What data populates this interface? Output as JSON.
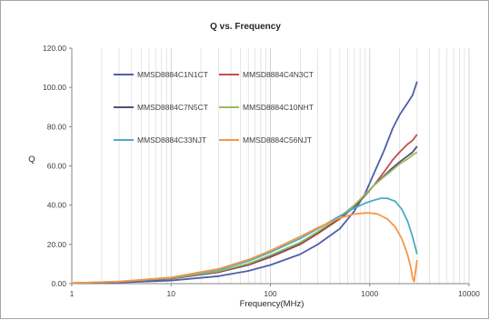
{
  "chart_data": {
    "type": "line",
    "title": "Q vs. Frequency",
    "xlabel": "Frequency(MHz)",
    "ylabel": "Q",
    "xscale": "log",
    "xlim": [
      1,
      10000
    ],
    "ylim": [
      0,
      120
    ],
    "x_ticks": [
      "1",
      "10",
      "100",
      "1000",
      "10000"
    ],
    "y_ticks": [
      "0.00",
      "20.00",
      "40.00",
      "60.00",
      "80.00",
      "100.00",
      "120.00"
    ],
    "grid": "vertical-minor-log",
    "legend_position": "upper-left",
    "series": [
      {
        "name": "MMSD8884C1N1CT",
        "color": "#4f5fa8",
        "points": [
          [
            1,
            0.2
          ],
          [
            3,
            0.6
          ],
          [
            10,
            1.6
          ],
          [
            30,
            3.8
          ],
          [
            60,
            6.5
          ],
          [
            100,
            9.5
          ],
          [
            200,
            15
          ],
          [
            300,
            20
          ],
          [
            500,
            28
          ],
          [
            700,
            37
          ],
          [
            900,
            46
          ],
          [
            1100,
            56
          ],
          [
            1400,
            68
          ],
          [
            1700,
            79
          ],
          [
            2000,
            86
          ],
          [
            2400,
            92
          ],
          [
            2700,
            96
          ],
          [
            3000,
            103
          ]
        ]
      },
      {
        "name": "MMSD8884C4N3CT",
        "color": "#c0504d",
        "points": [
          [
            1,
            0.3
          ],
          [
            3,
            0.9
          ],
          [
            10,
            2.5
          ],
          [
            30,
            5.8
          ],
          [
            60,
            9.5
          ],
          [
            100,
            13.5
          ],
          [
            200,
            20
          ],
          [
            300,
            25.5
          ],
          [
            500,
            33
          ],
          [
            700,
            39
          ],
          [
            900,
            45
          ],
          [
            1100,
            50
          ],
          [
            1400,
            57
          ],
          [
            1700,
            63
          ],
          [
            2000,
            67
          ],
          [
            2400,
            71
          ],
          [
            2700,
            73
          ],
          [
            3000,
            76
          ]
        ]
      },
      {
        "name": "MMSD8884C7N5CT",
        "color": "#5b4a78",
        "points": [
          [
            1,
            0.3
          ],
          [
            3,
            0.9
          ],
          [
            10,
            2.6
          ],
          [
            30,
            6
          ],
          [
            60,
            9.8
          ],
          [
            100,
            14
          ],
          [
            200,
            20.5
          ],
          [
            300,
            26
          ],
          [
            500,
            33.5
          ],
          [
            700,
            39.5
          ],
          [
            900,
            45
          ],
          [
            1100,
            50
          ],
          [
            1400,
            55
          ],
          [
            1700,
            59
          ],
          [
            2000,
            62
          ],
          [
            2400,
            65
          ],
          [
            2700,
            67
          ],
          [
            3000,
            70
          ]
        ]
      },
      {
        "name": "MMSD8884C10NHT",
        "color": "#9bbb59",
        "points": [
          [
            1,
            0.3
          ],
          [
            3,
            1
          ],
          [
            10,
            2.8
          ],
          [
            30,
            6.3
          ],
          [
            60,
            10.2
          ],
          [
            100,
            14.5
          ],
          [
            200,
            21
          ],
          [
            300,
            26.5
          ],
          [
            500,
            34
          ],
          [
            700,
            40
          ],
          [
            900,
            45.5
          ],
          [
            1100,
            50
          ],
          [
            1400,
            54.5
          ],
          [
            1700,
            58
          ],
          [
            2000,
            61
          ],
          [
            2400,
            63.5
          ],
          [
            2700,
            65.5
          ],
          [
            3000,
            67
          ]
        ]
      },
      {
        "name": "MMSD8884C33NJT",
        "color": "#4bacc6",
        "points": [
          [
            1,
            0.3
          ],
          [
            3,
            1
          ],
          [
            10,
            3
          ],
          [
            30,
            7
          ],
          [
            60,
            11.5
          ],
          [
            100,
            16
          ],
          [
            200,
            23
          ],
          [
            300,
            28
          ],
          [
            500,
            34.5
          ],
          [
            700,
            38.5
          ],
          [
            900,
            41
          ],
          [
            1100,
            42.5
          ],
          [
            1300,
            43.5
          ],
          [
            1500,
            43.5
          ],
          [
            1800,
            42
          ],
          [
            2100,
            38
          ],
          [
            2400,
            32
          ],
          [
            2700,
            24
          ],
          [
            3000,
            15
          ]
        ]
      },
      {
        "name": "MMSD8884C56NJT",
        "color": "#f79646",
        "points": [
          [
            1,
            0.3
          ],
          [
            3,
            1.1
          ],
          [
            10,
            3.2
          ],
          [
            30,
            7.5
          ],
          [
            60,
            12.2
          ],
          [
            100,
            16.8
          ],
          [
            200,
            24
          ],
          [
            300,
            28.5
          ],
          [
            500,
            33.5
          ],
          [
            700,
            35.5
          ],
          [
            900,
            36
          ],
          [
            1000,
            36
          ],
          [
            1200,
            35.5
          ],
          [
            1500,
            33
          ],
          [
            1800,
            29
          ],
          [
            2100,
            23
          ],
          [
            2400,
            15
          ],
          [
            2600,
            8
          ],
          [
            2700,
            3
          ],
          [
            2800,
            1
          ],
          [
            3000,
            12
          ]
        ]
      }
    ]
  }
}
